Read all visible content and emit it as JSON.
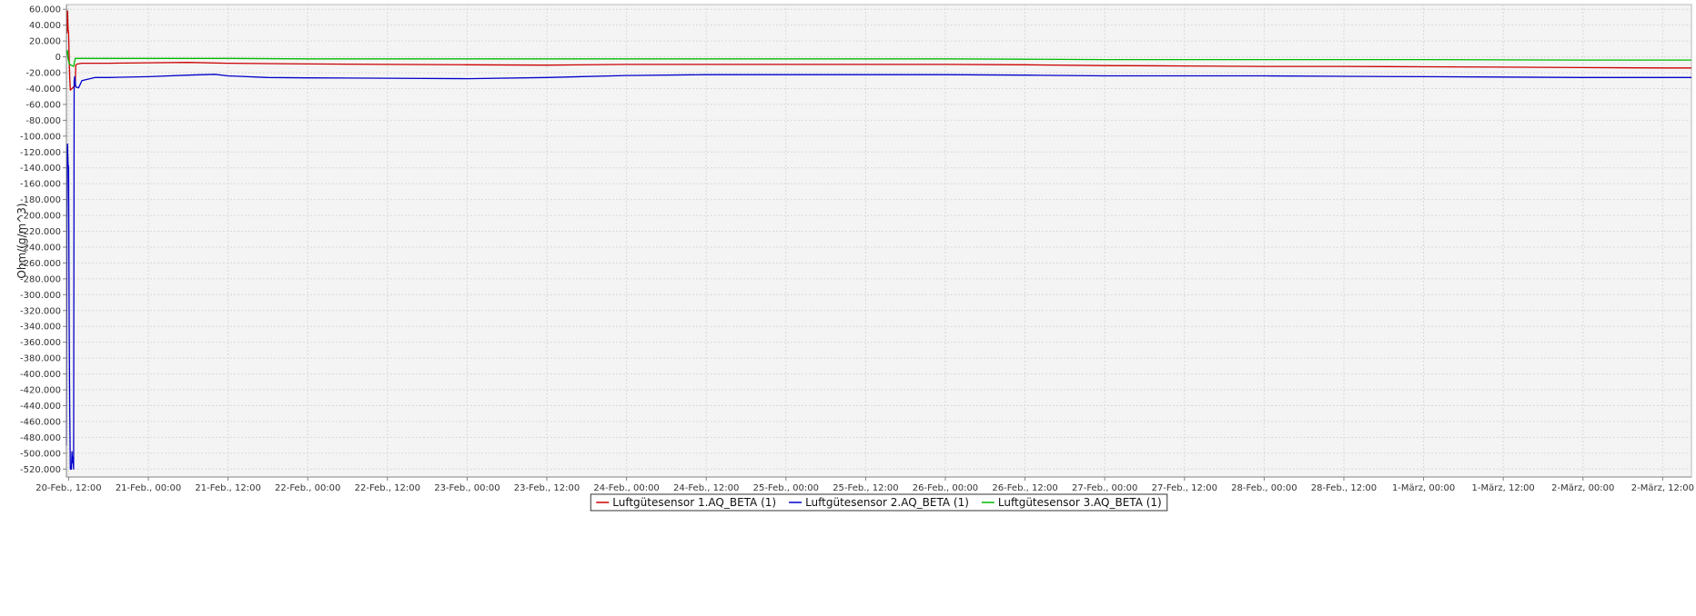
{
  "chart_data": {
    "type": "line",
    "ylabel": "Ohm/(g/m^3)",
    "xlabel": "",
    "ylim": [
      -530000,
      66000
    ],
    "y_ticks": [
      {
        "value": 60000,
        "label": "60.000"
      },
      {
        "value": 40000,
        "label": "40.000"
      },
      {
        "value": 20000,
        "label": "20.000"
      },
      {
        "value": 0,
        "label": "0"
      },
      {
        "value": -20000,
        "label": "-20.000"
      },
      {
        "value": -40000,
        "label": "-40.000"
      },
      {
        "value": -60000,
        "label": "-60.000"
      },
      {
        "value": -80000,
        "label": "-80.000"
      },
      {
        "value": -100000,
        "label": "-100.000"
      },
      {
        "value": -120000,
        "label": "-120.000"
      },
      {
        "value": -140000,
        "label": "-140.000"
      },
      {
        "value": -160000,
        "label": "-160.000"
      },
      {
        "value": -180000,
        "label": "-180.000"
      },
      {
        "value": -200000,
        "label": "-200.000"
      },
      {
        "value": -220000,
        "label": "-220.000"
      },
      {
        "value": -240000,
        "label": "-240.000"
      },
      {
        "value": -260000,
        "label": "-260.000"
      },
      {
        "value": -280000,
        "label": "-280.000"
      },
      {
        "value": -300000,
        "label": "-300.000"
      },
      {
        "value": -320000,
        "label": "-320.000"
      },
      {
        "value": -340000,
        "label": "-340.000"
      },
      {
        "value": -360000,
        "label": "-360.000"
      },
      {
        "value": -380000,
        "label": "-380.000"
      },
      {
        "value": -400000,
        "label": "-400.000"
      },
      {
        "value": -420000,
        "label": "-420.000"
      },
      {
        "value": -440000,
        "label": "-440.000"
      },
      {
        "value": -460000,
        "label": "-460.000"
      },
      {
        "value": -480000,
        "label": "-480.000"
      },
      {
        "value": -500000,
        "label": "-500.000"
      },
      {
        "value": -520000,
        "label": "-520.000"
      }
    ],
    "xlim": [
      "2019-02-20T11:40",
      "2019-03-02T16:20"
    ],
    "x_ticks": [
      {
        "value": "2019-02-20T12:00",
        "label": "20-Feb., 12:00"
      },
      {
        "value": "2019-02-21T00:00",
        "label": "21-Feb., 00:00"
      },
      {
        "value": "2019-02-21T12:00",
        "label": "21-Feb., 12:00"
      },
      {
        "value": "2019-02-22T00:00",
        "label": "22-Feb., 00:00"
      },
      {
        "value": "2019-02-22T12:00",
        "label": "22-Feb., 12:00"
      },
      {
        "value": "2019-02-23T00:00",
        "label": "23-Feb., 00:00"
      },
      {
        "value": "2019-02-23T12:00",
        "label": "23-Feb., 12:00"
      },
      {
        "value": "2019-02-24T00:00",
        "label": "24-Feb., 00:00"
      },
      {
        "value": "2019-02-24T12:00",
        "label": "24-Feb., 12:00"
      },
      {
        "value": "2019-02-25T00:00",
        "label": "25-Feb., 00:00"
      },
      {
        "value": "2019-02-25T12:00",
        "label": "25-Feb., 12:00"
      },
      {
        "value": "2019-02-26T00:00",
        "label": "26-Feb., 00:00"
      },
      {
        "value": "2019-02-26T12:00",
        "label": "26-Feb., 12:00"
      },
      {
        "value": "2019-02-27T00:00",
        "label": "27-Feb., 00:00"
      },
      {
        "value": "2019-02-27T12:00",
        "label": "27-Feb., 12:00"
      },
      {
        "value": "2019-02-28T00:00",
        "label": "28-Feb., 00:00"
      },
      {
        "value": "2019-02-28T12:00",
        "label": "28-Feb., 12:00"
      },
      {
        "value": "2019-03-01T00:00",
        "label": "1-März, 00:00"
      },
      {
        "value": "2019-03-01T12:00",
        "label": "1-März, 12:00"
      },
      {
        "value": "2019-03-02T00:00",
        "label": "2-März, 00:00"
      },
      {
        "value": "2019-03-02T12:00",
        "label": "2-März, 12:00"
      }
    ],
    "grid": true,
    "legend_position": "bottom-center",
    "series": [
      {
        "name": "Luftgütesensor 1.AQ_BETA (1)",
        "color": "#cc0000",
        "points": [
          [
            "2019-02-20T11:40",
            35000
          ],
          [
            "2019-02-20T11:45",
            30000
          ],
          [
            "2019-02-20T11:50",
            58000
          ],
          [
            "2019-02-20T11:55",
            35000
          ],
          [
            "2019-02-20T12:00",
            30000
          ],
          [
            "2019-02-20T12:05",
            0
          ],
          [
            "2019-02-20T12:10",
            -25000
          ],
          [
            "2019-02-20T12:15",
            -42000
          ],
          [
            "2019-02-20T12:30",
            -40000
          ],
          [
            "2019-02-20T12:45",
            -38000
          ],
          [
            "2019-02-20T13:00",
            -35000
          ],
          [
            "2019-02-20T13:05",
            -10000
          ],
          [
            "2019-02-20T13:20",
            -9000
          ],
          [
            "2019-02-20T14:00",
            -8000
          ],
          [
            "2019-02-20T18:00",
            -8000
          ],
          [
            "2019-02-21T00:00",
            -7500
          ],
          [
            "2019-02-21T06:00",
            -7000
          ],
          [
            "2019-02-21T12:00",
            -8000
          ],
          [
            "2019-02-21T18:00",
            -8500
          ],
          [
            "2019-02-22T00:00",
            -9000
          ],
          [
            "2019-02-22T12:00",
            -9500
          ],
          [
            "2019-02-23T00:00",
            -10000
          ],
          [
            "2019-02-23T12:00",
            -10500
          ],
          [
            "2019-02-24T00:00",
            -9500
          ],
          [
            "2019-02-24T12:00",
            -9500
          ],
          [
            "2019-02-25T00:00",
            -9500
          ],
          [
            "2019-02-25T12:00",
            -9500
          ],
          [
            "2019-02-26T00:00",
            -9500
          ],
          [
            "2019-02-26T12:00",
            -10000
          ],
          [
            "2019-02-27T00:00",
            -11000
          ],
          [
            "2019-02-27T12:00",
            -11500
          ],
          [
            "2019-02-28T00:00",
            -12000
          ],
          [
            "2019-02-28T12:00",
            -12000
          ],
          [
            "2019-03-01T00:00",
            -12500
          ],
          [
            "2019-03-01T12:00",
            -13000
          ],
          [
            "2019-03-02T00:00",
            -13500
          ],
          [
            "2019-03-02T12:00",
            -14000
          ],
          [
            "2019-03-02T16:20",
            -14000
          ]
        ]
      },
      {
        "name": "Luftgütesensor 2.AQ_BETA (1)",
        "color": "#0000cc",
        "points": [
          [
            "2019-02-20T11:40",
            -490000
          ],
          [
            "2019-02-20T11:45",
            -200000
          ],
          [
            "2019-02-20T11:50",
            -110000
          ],
          [
            "2019-02-20T11:55",
            -135000
          ],
          [
            "2019-02-20T12:00",
            -140000
          ],
          [
            "2019-02-20T12:05",
            -330000
          ],
          [
            "2019-02-20T12:10",
            -440000
          ],
          [
            "2019-02-20T12:15",
            -520000
          ],
          [
            "2019-02-20T12:25",
            -520000
          ],
          [
            "2019-02-20T12:30",
            -498000
          ],
          [
            "2019-02-20T12:35",
            -512000
          ],
          [
            "2019-02-20T12:40",
            -505000
          ],
          [
            "2019-02-20T12:45",
            -520000
          ],
          [
            "2019-02-20T12:50",
            -30000
          ],
          [
            "2019-02-20T12:55",
            -25000
          ],
          [
            "2019-02-20T13:05",
            -38000
          ],
          [
            "2019-02-20T13:30",
            -39000
          ],
          [
            "2019-02-20T14:00",
            -30000
          ],
          [
            "2019-02-20T15:00",
            -28000
          ],
          [
            "2019-02-20T16:00",
            -26000
          ],
          [
            "2019-02-20T18:00",
            -26000
          ],
          [
            "2019-02-21T00:00",
            -25000
          ],
          [
            "2019-02-21T06:00",
            -23000
          ],
          [
            "2019-02-21T10:00",
            -22000
          ],
          [
            "2019-02-21T12:00",
            -24000
          ],
          [
            "2019-02-21T18:00",
            -26000
          ],
          [
            "2019-02-22T00:00",
            -26500
          ],
          [
            "2019-02-22T12:00",
            -27000
          ],
          [
            "2019-02-23T00:00",
            -27500
          ],
          [
            "2019-02-23T12:00",
            -26000
          ],
          [
            "2019-02-24T00:00",
            -23500
          ],
          [
            "2019-02-24T12:00",
            -22500
          ],
          [
            "2019-02-25T00:00",
            -22500
          ],
          [
            "2019-02-25T12:00",
            -22500
          ],
          [
            "2019-02-26T00:00",
            -22500
          ],
          [
            "2019-02-26T12:00",
            -23000
          ],
          [
            "2019-02-27T00:00",
            -24000
          ],
          [
            "2019-02-27T12:00",
            -24000
          ],
          [
            "2019-02-28T00:00",
            -24000
          ],
          [
            "2019-02-28T12:00",
            -24500
          ],
          [
            "2019-03-01T00:00",
            -25000
          ],
          [
            "2019-03-01T12:00",
            -25500
          ],
          [
            "2019-03-02T00:00",
            -26000
          ],
          [
            "2019-03-02T12:00",
            -26000
          ],
          [
            "2019-03-02T16:20",
            -26000
          ]
        ]
      },
      {
        "name": "Luftgütesensor 3.AQ_BETA (1)",
        "color": "#00bb00",
        "points": [
          [
            "2019-02-20T11:40",
            5000
          ],
          [
            "2019-02-20T11:45",
            3000
          ],
          [
            "2019-02-20T11:50",
            8000
          ],
          [
            "2019-02-20T11:55",
            -2000
          ],
          [
            "2019-02-20T12:00",
            -5000
          ],
          [
            "2019-02-20T12:05",
            -8000
          ],
          [
            "2019-02-20T12:15",
            -10000
          ],
          [
            "2019-02-20T12:30",
            -11000
          ],
          [
            "2019-02-20T12:45",
            -12000
          ],
          [
            "2019-02-20T13:00",
            -2000
          ],
          [
            "2019-02-20T13:30",
            -2000
          ],
          [
            "2019-02-20T18:00",
            -2000
          ],
          [
            "2019-02-21T00:00",
            -2000
          ],
          [
            "2019-02-21T12:00",
            -2000
          ],
          [
            "2019-02-22T00:00",
            -2500
          ],
          [
            "2019-02-23T00:00",
            -2500
          ],
          [
            "2019-02-24T00:00",
            -2500
          ],
          [
            "2019-02-25T00:00",
            -2500
          ],
          [
            "2019-02-26T00:00",
            -2500
          ],
          [
            "2019-02-26T12:00",
            -3000
          ],
          [
            "2019-02-27T00:00",
            -3500
          ],
          [
            "2019-02-28T00:00",
            -3500
          ],
          [
            "2019-03-01T00:00",
            -3500
          ],
          [
            "2019-03-02T00:00",
            -4000
          ],
          [
            "2019-03-02T16:20",
            -4000
          ]
        ]
      }
    ]
  }
}
